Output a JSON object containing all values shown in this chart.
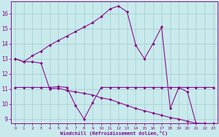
{
  "xlabel": "Windchill (Refroidissement éolien,°C)",
  "background_color": "#c8eaec",
  "grid_color": "#9fc8c8",
  "line_color": "#880088",
  "xlim": [
    -0.5,
    23.5
  ],
  "ylim": [
    8.7,
    16.8
  ],
  "yticks": [
    9,
    10,
    11,
    12,
    13,
    14,
    15,
    16
  ],
  "xticks": [
    0,
    1,
    2,
    3,
    4,
    5,
    6,
    7,
    8,
    9,
    10,
    11,
    12,
    13,
    14,
    15,
    16,
    17,
    18,
    19,
    20,
    21,
    22,
    23
  ],
  "line1_x": [
    0,
    1,
    2,
    3,
    4,
    5,
    6,
    7,
    8,
    9,
    10,
    11,
    12,
    13,
    14,
    15,
    16,
    17,
    18,
    19,
    20,
    21,
    22,
    23
  ],
  "line1_y": [
    13.0,
    12.8,
    13.2,
    13.5,
    13.9,
    14.2,
    14.5,
    14.8,
    15.1,
    15.4,
    15.8,
    16.3,
    16.5,
    16.1,
    13.9,
    13.0,
    14.0,
    15.1,
    9.7,
    11.1,
    10.8,
    8.7,
    8.7,
    8.7
  ],
  "line2_x": [
    0,
    1,
    2,
    3,
    4,
    5,
    6,
    7,
    8,
    9,
    10,
    11,
    12,
    13,
    14,
    15,
    16,
    17,
    18,
    19,
    20,
    21,
    22,
    23
  ],
  "line2_y": [
    11.1,
    11.1,
    11.1,
    11.1,
    11.1,
    11.15,
    11.1,
    9.9,
    9.0,
    10.1,
    11.1,
    11.1,
    11.1,
    11.1,
    11.1,
    11.1,
    11.1,
    11.1,
    11.1,
    11.1,
    11.1,
    11.1,
    11.1,
    11.1
  ],
  "line3_x": [
    0,
    1,
    2,
    3,
    4,
    5,
    6,
    7,
    8,
    9,
    10,
    11,
    12,
    13,
    14,
    15,
    16,
    17,
    18,
    19,
    20,
    21,
    22,
    23
  ],
  "line3_y": [
    13.0,
    12.8,
    12.8,
    12.7,
    11.0,
    11.05,
    10.9,
    10.8,
    10.7,
    10.6,
    10.4,
    10.3,
    10.1,
    9.9,
    9.7,
    9.55,
    9.4,
    9.25,
    9.1,
    9.0,
    8.85,
    8.72,
    8.7,
    8.65
  ]
}
